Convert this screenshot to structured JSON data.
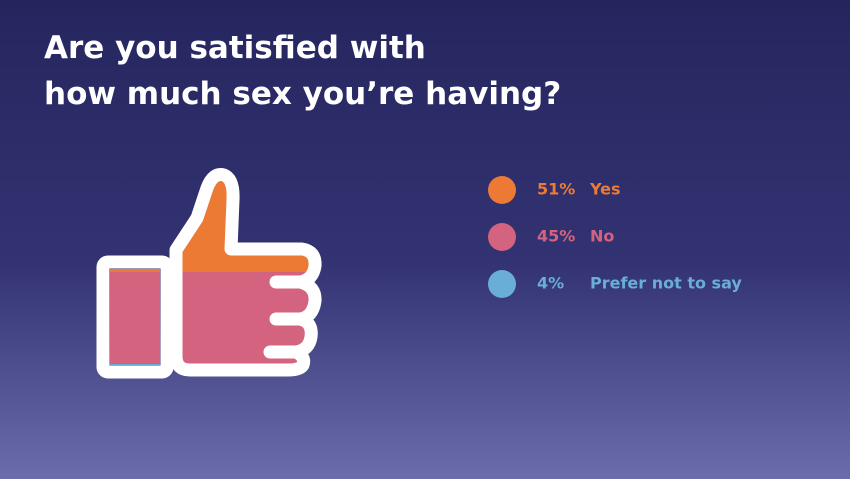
{
  "chart_data": {
    "type": "pictogram",
    "title": [
      "Are you satisfied with",
      "how much sex you’re having?"
    ],
    "series": [
      {
        "name": "Yes",
        "color": "#ec7a35",
        "values": [
          51
        ],
        "value_labels": [
          "51%"
        ]
      },
      {
        "name": "No",
        "color": "#d4637f",
        "values": [
          45
        ],
        "value_labels": [
          "45%"
        ]
      },
      {
        "name": "Prefer not to say",
        "color": "#6aaed6",
        "values": [
          4
        ],
        "value_labels": [
          "4%"
        ]
      }
    ]
  }
}
